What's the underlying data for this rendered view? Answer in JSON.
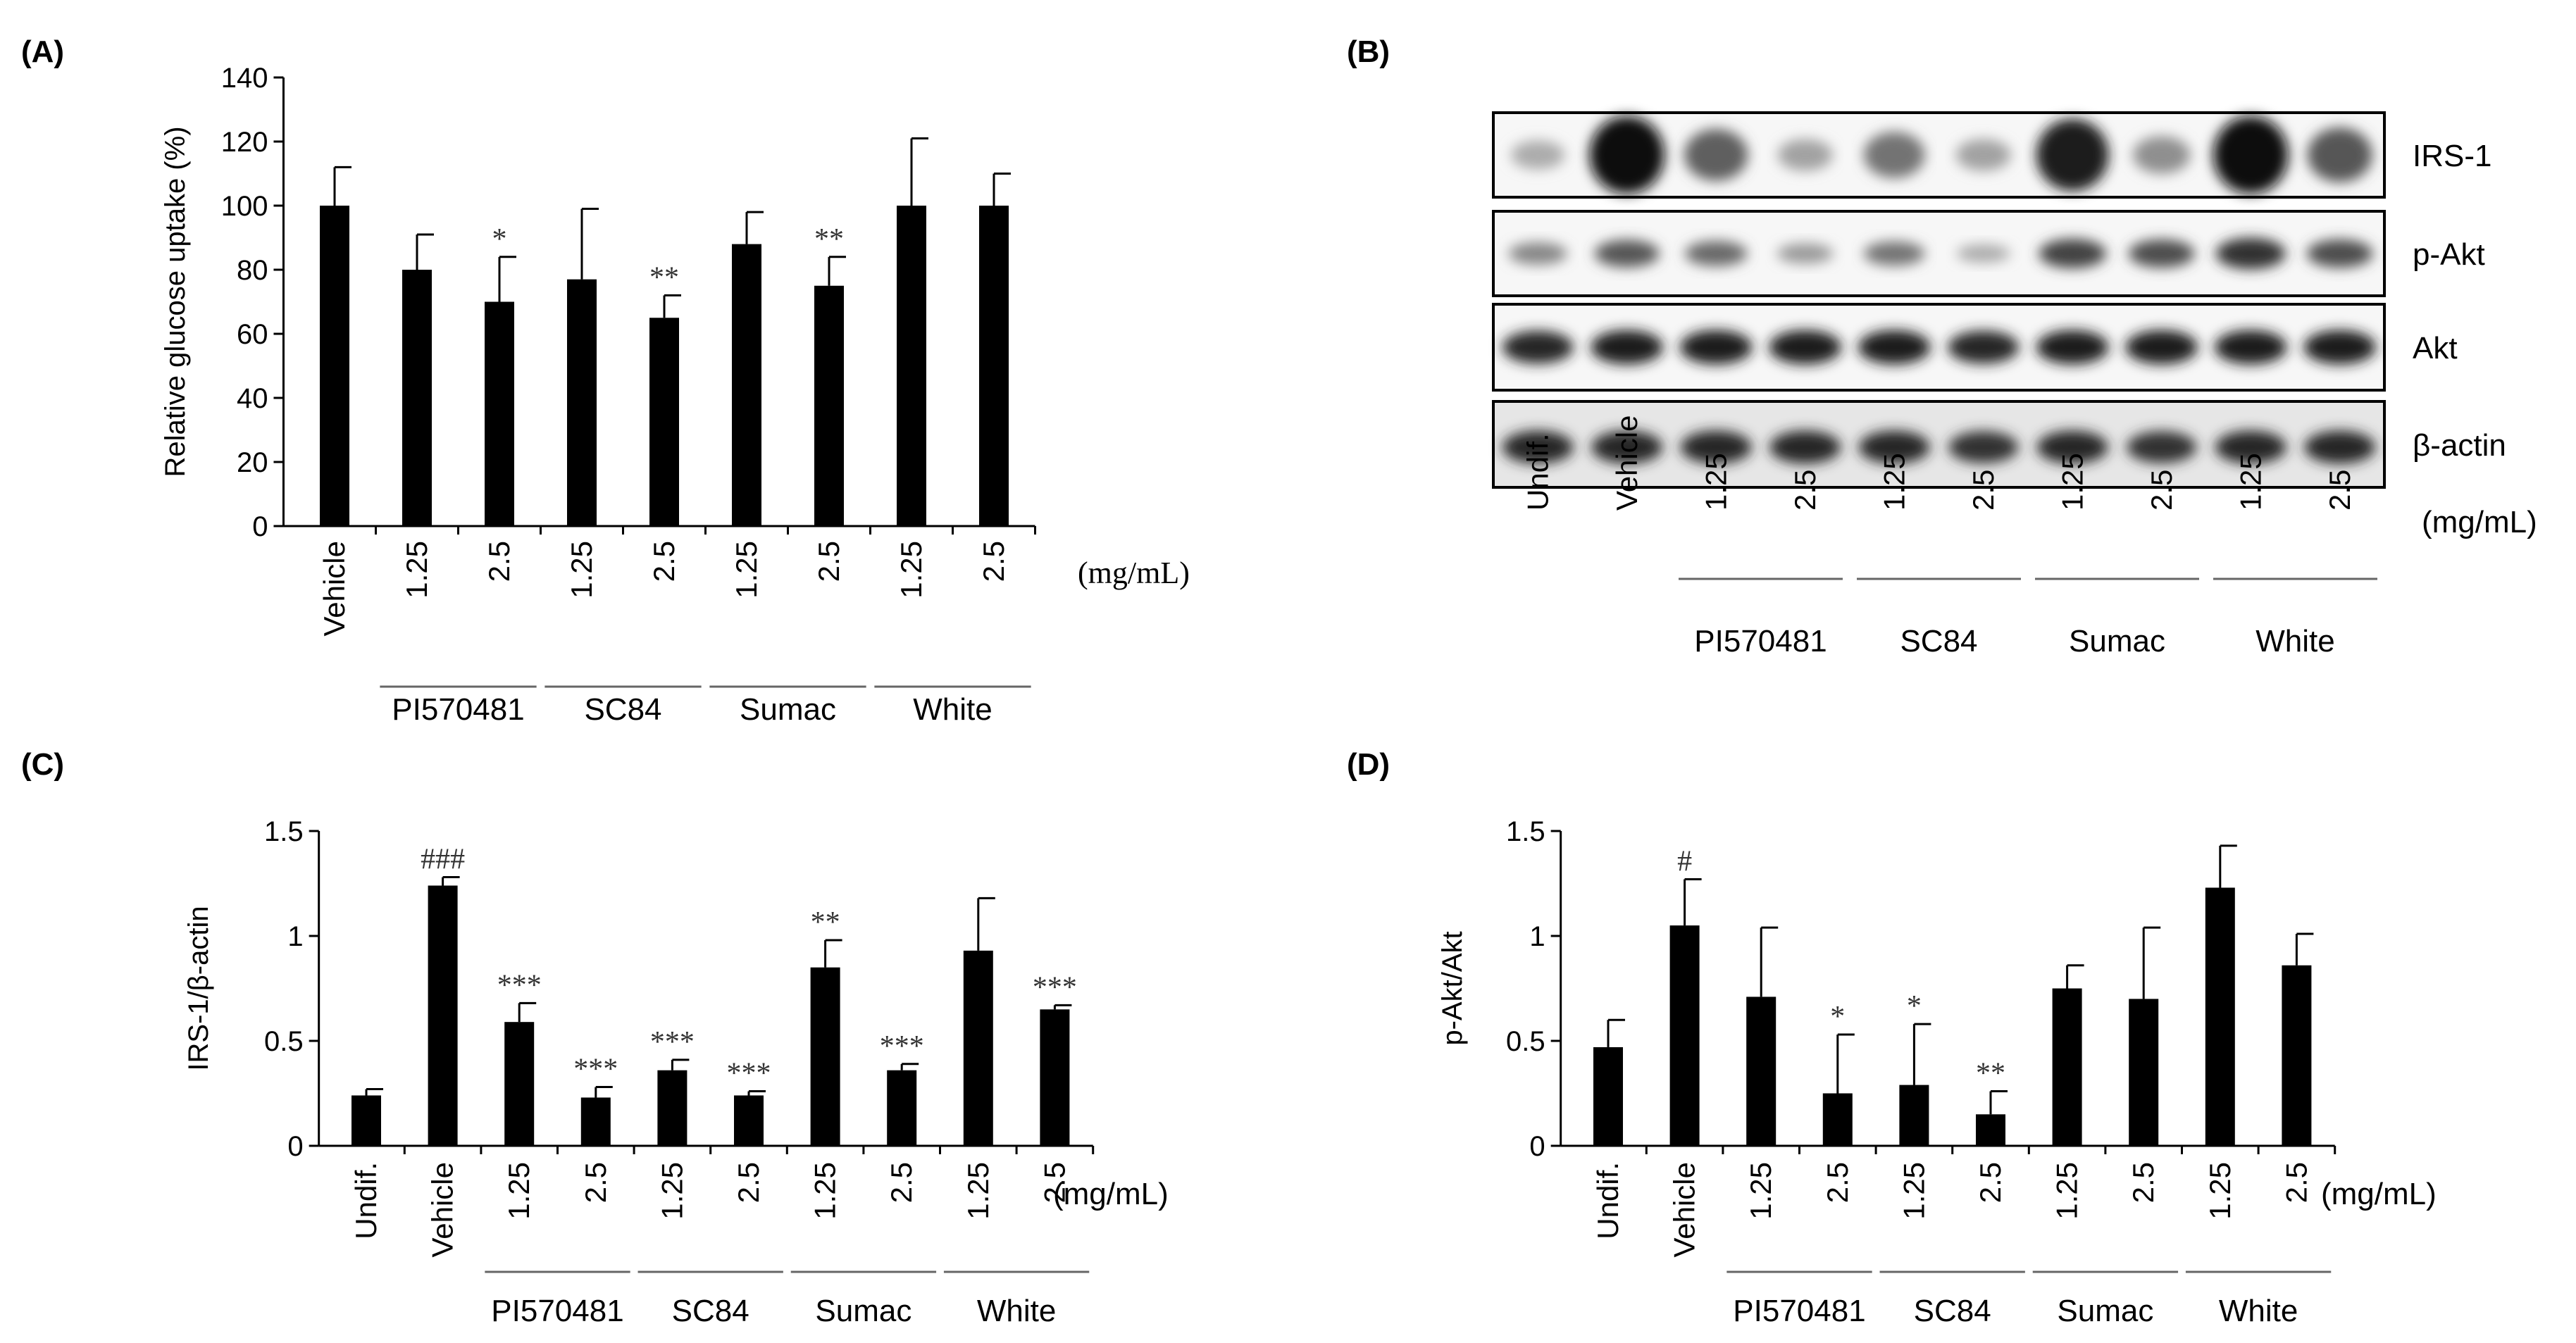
{
  "panels": {
    "A": {
      "label": "(A)"
    },
    "B": {
      "label": "(B)"
    },
    "C": {
      "label": "(C)"
    },
    "D": {
      "label": "(D)"
    }
  },
  "blot": {
    "rows": [
      "IRS-1",
      "p-Akt",
      "Akt",
      "β-actin"
    ],
    "lanes": [
      "Undif.",
      "Vehicle",
      "1.25",
      "2.5",
      "1.25",
      "2.5",
      "1.25",
      "2.5",
      "1.25",
      "2.5"
    ],
    "unit": "(mg/mL)",
    "groups": [
      {
        "name": "PI570481",
        "lanes": [
          2,
          3
        ]
      },
      {
        "name": "SC84",
        "lanes": [
          4,
          5
        ]
      },
      {
        "name": "Sumac",
        "lanes": [
          6,
          7
        ]
      },
      {
        "name": "White",
        "lanes": [
          8,
          9
        ]
      }
    ],
    "intensity": {
      "IRS-1": [
        0.15,
        1.0,
        0.55,
        0.2,
        0.45,
        0.2,
        0.9,
        0.3,
        1.0,
        0.6
      ],
      "p-Akt": [
        0.35,
        0.6,
        0.5,
        0.25,
        0.45,
        0.15,
        0.7,
        0.65,
        0.8,
        0.65
      ],
      "Akt": [
        0.85,
        0.9,
        0.9,
        0.9,
        0.9,
        0.85,
        0.9,
        0.9,
        0.9,
        0.9
      ],
      "β-actin": [
        0.85,
        0.85,
        0.85,
        0.85,
        0.85,
        0.8,
        0.85,
        0.8,
        0.85,
        0.85
      ]
    }
  },
  "chart_data": [
    {
      "panel": "A",
      "type": "bar",
      "ylabel": "Relative glucose uptake (%)",
      "ylim": [
        0,
        140
      ],
      "yticks": [
        0,
        20,
        40,
        60,
        80,
        100,
        120,
        140
      ],
      "categories": [
        "Vehicle",
        "1.25",
        "2.5",
        "1.25",
        "2.5",
        "1.25",
        "2.5",
        "1.25",
        "2.5"
      ],
      "values": [
        100,
        80,
        70,
        77,
        65,
        88,
        75,
        100,
        100
      ],
      "errors": [
        12,
        11,
        14,
        22,
        7,
        10,
        9,
        21,
        10
      ],
      "significance": [
        "",
        "",
        "*",
        "",
        "**",
        "",
        "**",
        "",
        ""
      ],
      "groups": [
        {
          "name": "PI570481",
          "bars": [
            1,
            2
          ]
        },
        {
          "name": "SC84",
          "bars": [
            3,
            4
          ]
        },
        {
          "name": "Sumac",
          "bars": [
            5,
            6
          ]
        },
        {
          "name": "White",
          "bars": [
            7,
            8
          ]
        }
      ],
      "unit": "(mg/mL)"
    },
    {
      "panel": "C",
      "type": "bar",
      "ylabel": "IRS-1/β-actin",
      "ylim": [
        0,
        1.5
      ],
      "yticks": [
        "0",
        "0.5",
        "1",
        "1.5"
      ],
      "categories": [
        "Undif.",
        "Vehicle",
        "1.25",
        "2.5",
        "1.25",
        "2.5",
        "1.25",
        "2.5",
        "1.25",
        "2.5"
      ],
      "values": [
        0.24,
        1.24,
        0.59,
        0.23,
        0.36,
        0.24,
        0.85,
        0.36,
        0.93,
        0.65
      ],
      "errors": [
        0.03,
        0.04,
        0.09,
        0.05,
        0.05,
        0.02,
        0.13,
        0.03,
        0.25,
        0.02
      ],
      "significance": [
        "",
        "###",
        "***",
        "***",
        "***",
        "***",
        "**",
        "***",
        "",
        "***"
      ],
      "groups": [
        {
          "name": "PI570481",
          "bars": [
            2,
            3
          ]
        },
        {
          "name": "SC84",
          "bars": [
            4,
            5
          ]
        },
        {
          "name": "Sumac",
          "bars": [
            6,
            7
          ]
        },
        {
          "name": "White",
          "bars": [
            8,
            9
          ]
        }
      ],
      "unit": "(mg/mL)"
    },
    {
      "panel": "D",
      "type": "bar",
      "ylabel": "p-Akt/Akt",
      "ylim": [
        0,
        1.5
      ],
      "yticks": [
        "0",
        "0.5",
        "1",
        "1.5"
      ],
      "categories": [
        "Undif.",
        "Vehicle",
        "1.25",
        "2.5",
        "1.25",
        "2.5",
        "1.25",
        "2.5",
        "1.25",
        "2.5"
      ],
      "values": [
        0.47,
        1.05,
        0.71,
        0.25,
        0.29,
        0.15,
        0.75,
        0.7,
        1.23,
        0.86
      ],
      "errors": [
        0.13,
        0.22,
        0.33,
        0.28,
        0.29,
        0.11,
        0.11,
        0.34,
        0.2,
        0.15
      ],
      "significance": [
        "",
        "#",
        "",
        "*",
        "*",
        "**",
        "",
        "",
        "",
        ""
      ],
      "groups": [
        {
          "name": "PI570481",
          "bars": [
            2,
            3
          ]
        },
        {
          "name": "SC84",
          "bars": [
            4,
            5
          ]
        },
        {
          "name": "Sumac",
          "bars": [
            6,
            7
          ]
        },
        {
          "name": "White",
          "bars": [
            8,
            9
          ]
        }
      ],
      "unit": "(mg/mL)"
    }
  ]
}
